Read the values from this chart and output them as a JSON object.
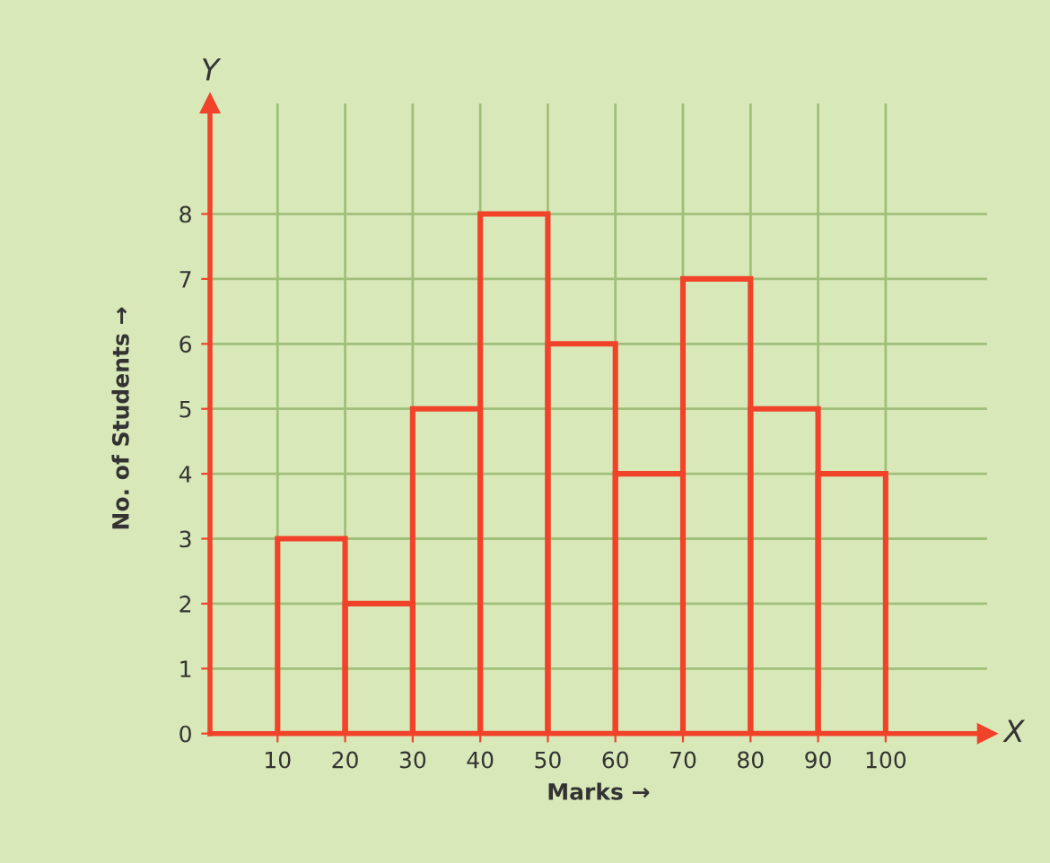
{
  "chart_data": {
    "type": "histogram",
    "xlabel": "Marks →",
    "ylabel": "No. of Students →",
    "bins": [
      10,
      20,
      30,
      40,
      50,
      60,
      70,
      80,
      90,
      100
    ],
    "values": [
      3,
      2,
      5,
      8,
      6,
      4,
      7,
      5,
      4
    ],
    "color": "#f0432a",
    "xlim": [
      0,
      115
    ],
    "ylim": [
      0,
      9.7
    ],
    "xticks": [
      10,
      20,
      30,
      40,
      50,
      60,
      70,
      80,
      90,
      100
    ],
    "yticks": [
      0,
      1,
      2,
      3,
      4,
      5,
      6,
      7,
      8
    ],
    "grid": true,
    "annotations": [
      "X",
      "Y"
    ]
  }
}
